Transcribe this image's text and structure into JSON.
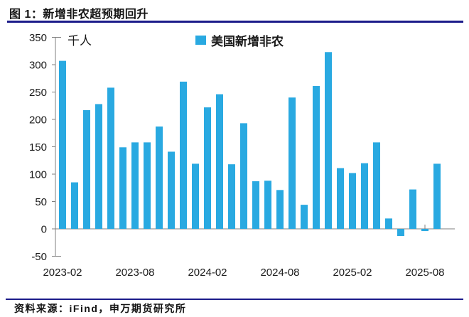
{
  "header": {
    "title": "图 1：新增非农超预期回升"
  },
  "footer": {
    "source": "资料来源：iFind，申万期货研究所"
  },
  "colors": {
    "bar": "#29a9e1",
    "rule": "#1c1c8a",
    "axis": "#7f7f7f",
    "text": "#1a1a1a"
  },
  "chart_data": {
    "type": "bar",
    "title": "图 1：新增非农超预期回升",
    "unit_label": "千人",
    "legend": [
      "美国新增非农"
    ],
    "legend_position": "top",
    "grid": false,
    "categories": [
      "2023-02",
      "2023-03",
      "2023-04",
      "2023-05",
      "2023-06",
      "2023-07",
      "2023-08",
      "2023-09",
      "2023-10",
      "2023-11",
      "2023-12",
      "2024-01",
      "2024-02",
      "2024-03",
      "2024-04",
      "2024-05",
      "2024-06",
      "2024-07",
      "2024-08",
      "2024-09",
      "2024-10",
      "2024-11",
      "2024-12",
      "2025-01",
      "2025-02",
      "2025-03",
      "2025-04",
      "2025-05",
      "2025-06",
      "2025-07",
      "2025-08",
      "2025-09"
    ],
    "values": [
      307,
      85,
      217,
      228,
      258,
      149,
      158,
      158,
      187,
      141,
      269,
      119,
      222,
      246,
      118,
      193,
      87,
      88,
      71,
      240,
      44,
      261,
      323,
      111,
      102,
      120,
      158,
      19,
      -13,
      72,
      -4,
      119
    ],
    "x_tick_indices": [
      0,
      6,
      12,
      18,
      24,
      30
    ],
    "x_tick_labels": [
      "2023-02",
      "2023-08",
      "2024-02",
      "2024-08",
      "2025-02",
      "2025-08"
    ],
    "y_ticks": [
      350,
      300,
      250,
      200,
      150,
      100,
      50,
      0,
      -50
    ],
    "ylim": [
      -50,
      350
    ],
    "ylabel": "千人",
    "xlabel": ""
  }
}
